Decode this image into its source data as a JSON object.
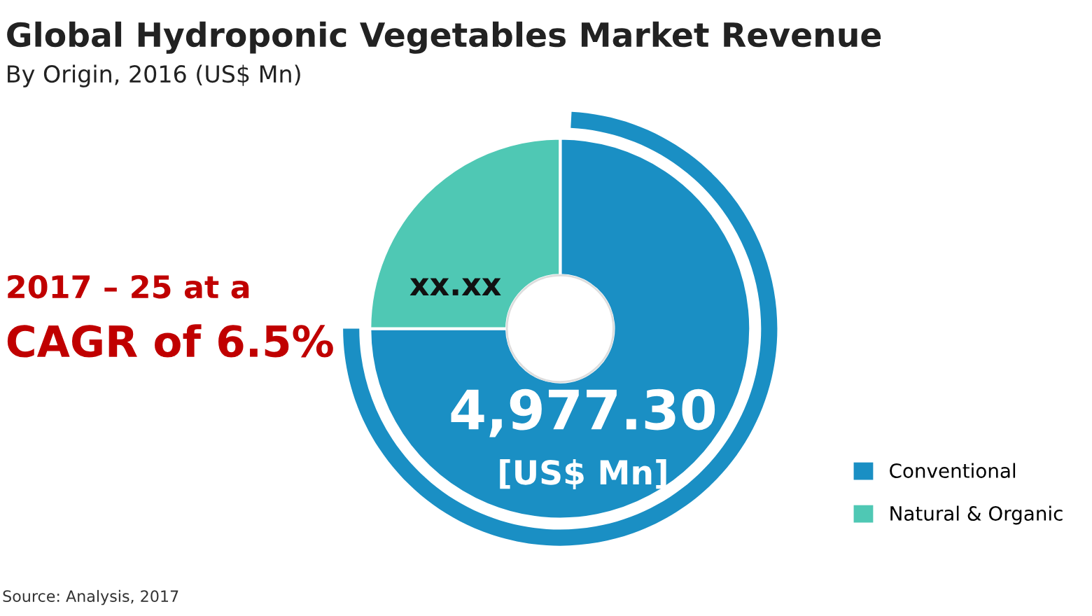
{
  "chart_data": {
    "type": "donut",
    "title": "Global Hydroponic Vegetables Market Revenue",
    "subtitle": "By Origin, 2016 (US$ Mn)",
    "categories": [
      "Conventional",
      "Natural & Organic"
    ],
    "values": [
      4977.3,
      1659
    ],
    "colors": [
      "#1a8fc4",
      "#4fc8b4"
    ],
    "value_labels": [
      "4,977.30\n[US$ Mn]",
      "xx.xx"
    ],
    "legend": "bottom right",
    "annotations": [
      "2017 – 25 at a",
      "CAGR of 6.5%",
      "Source: Analysis, 2017"
    ]
  }
}
